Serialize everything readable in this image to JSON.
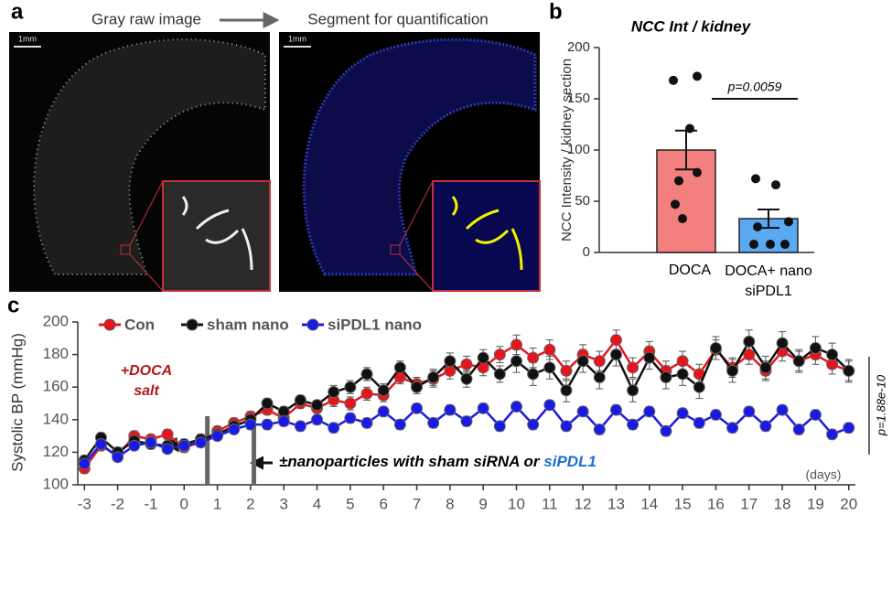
{
  "panel_a": {
    "panel_label": "a",
    "left_title": "Gray raw image",
    "right_title": "Segment for quantification",
    "scale_bar": "1mm"
  },
  "chart_data": [
    {
      "type": "bar",
      "panel_label": "b",
      "title": "NCC Int / kidney",
      "ylabel": "NCC Intensity / kidney section",
      "categories": [
        "DOCA",
        "DOCA+ nano\nsiPDL1"
      ],
      "values": [
        100,
        33
      ],
      "errors": [
        19,
        9
      ],
      "colors": [
        "#f47f7f",
        "#5aaaf2"
      ],
      "points": [
        [
          168,
          172,
          121,
          78,
          70,
          47,
          33
        ],
        [
          72,
          66,
          30,
          25,
          8,
          8,
          8
        ]
      ],
      "annotation": "p=0.0059",
      "ylim": [
        0,
        200
      ],
      "yticks": [
        0,
        50,
        100,
        150,
        200
      ]
    },
    {
      "type": "line",
      "panel_label": "c",
      "ylabel": "Systolic BP (mmHg)",
      "xlabel": "(days)",
      "x": [
        -3,
        -2.5,
        -2,
        -1.5,
        -1,
        -0.5,
        0,
        0.5,
        1,
        1.5,
        2,
        2.5,
        3,
        3.5,
        4,
        4.5,
        5,
        5.5,
        6,
        6.5,
        7,
        7.5,
        8,
        8.5,
        9,
        9.5,
        10,
        10.5,
        11,
        11.5,
        12,
        12.5,
        13,
        13.5,
        14,
        14.5,
        15,
        15.5,
        16,
        16.5,
        17,
        17.5,
        18,
        18.5,
        19,
        19.5,
        20
      ],
      "series": [
        {
          "name": "Con",
          "color": "#e8141c",
          "values": [
            110,
            124,
            118,
            130,
            128,
            131,
            123,
            126,
            133,
            138,
            142,
            146,
            141,
            150,
            147,
            152,
            150,
            156,
            155,
            166,
            162,
            165,
            170,
            174,
            172,
            180,
            186,
            178,
            183,
            170,
            180,
            176,
            189,
            172,
            182,
            170,
            176,
            168,
            183,
            172,
            180,
            170,
            182,
            176,
            180,
            174,
            170
          ],
          "errors": [
            3,
            3,
            3,
            3,
            3,
            3,
            3,
            3,
            3,
            3,
            3,
            3,
            3,
            3,
            3,
            4,
            4,
            4,
            4,
            4,
            4,
            5,
            5,
            5,
            5,
            5,
            6,
            6,
            6,
            6,
            6,
            6,
            6,
            6,
            6,
            6,
            6,
            6,
            6,
            6,
            6,
            6,
            6,
            6,
            6,
            6,
            6
          ]
        },
        {
          "name": "sham nano",
          "color": "#111111",
          "values": [
            115,
            129,
            120,
            127,
            125,
            124,
            125,
            128,
            131,
            136,
            140,
            150,
            145,
            152,
            149,
            157,
            160,
            168,
            158,
            172,
            160,
            166,
            176,
            165,
            178,
            168,
            176,
            168,
            172,
            158,
            176,
            166,
            180,
            158,
            178,
            166,
            168,
            160,
            184,
            170,
            188,
            172,
            187,
            176,
            184,
            180,
            170
          ],
          "errors": [
            3,
            3,
            3,
            3,
            3,
            3,
            3,
            3,
            3,
            3,
            3,
            3,
            3,
            3,
            3,
            4,
            4,
            4,
            4,
            4,
            4,
            5,
            5,
            5,
            5,
            5,
            7,
            7,
            7,
            7,
            7,
            7,
            7,
            7,
            7,
            7,
            7,
            7,
            7,
            7,
            7,
            7,
            7,
            7,
            7,
            7,
            7
          ]
        },
        {
          "name": "siPDL1 nano",
          "color": "#1a1ae6",
          "values": [
            113,
            125,
            117,
            124,
            126,
            122,
            124,
            126,
            130,
            134,
            137,
            137,
            139,
            136,
            140,
            135,
            141,
            138,
            145,
            137,
            147,
            138,
            146,
            139,
            147,
            136,
            148,
            137,
            149,
            136,
            145,
            134,
            146,
            137,
            145,
            133,
            144,
            138,
            143,
            135,
            145,
            136,
            146,
            134,
            143,
            131,
            135
          ],
          "errors": [
            2,
            2,
            2,
            2,
            2,
            2,
            2,
            2,
            2,
            2,
            3,
            3,
            3,
            3,
            3,
            3,
            3,
            3,
            3,
            3,
            3,
            3,
            3,
            3,
            3,
            3,
            3,
            3,
            3,
            3,
            3,
            3,
            3,
            3,
            3,
            3,
            3,
            3,
            3,
            3,
            3,
            3,
            3,
            3,
            3,
            3,
            3
          ]
        }
      ],
      "markers": [
        0.7,
        2.1
      ],
      "doca_note": "+DOCA\nsalt",
      "nano_note": "±nanoparticles with sham siRNA or",
      "nano_note_highlight": "siPDL1",
      "p_value": "p=1.88e-10",
      "xlim": [
        -3.2,
        20.2
      ],
      "ylim": [
        100,
        200
      ],
      "xticks": [
        -3,
        -2,
        -1,
        0,
        1,
        2,
        3,
        4,
        5,
        6,
        7,
        8,
        9,
        10,
        11,
        12,
        13,
        14,
        15,
        16,
        17,
        18,
        19,
        20
      ],
      "yticks": [
        100,
        120,
        140,
        160,
        180,
        200
      ]
    }
  ]
}
